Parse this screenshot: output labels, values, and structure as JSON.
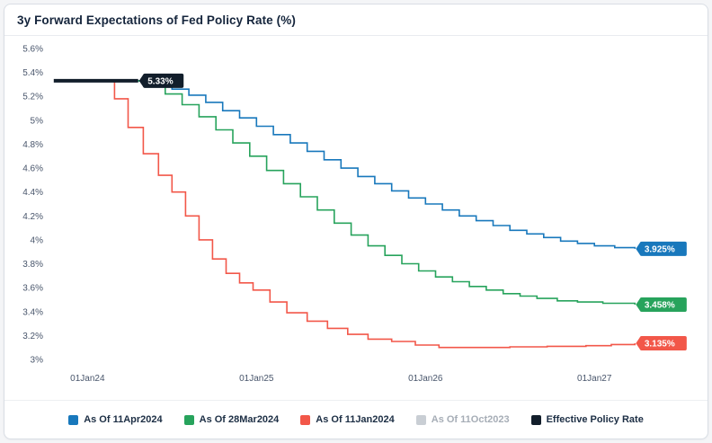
{
  "header": {
    "title": "3y Forward Expectations of Fed Policy Rate (%)"
  },
  "chart_data": {
    "type": "line",
    "step": "after",
    "title": "3y Forward Expectations of Fed Policy Rate (%)",
    "xlabel": "",
    "ylabel": "",
    "grid": false,
    "legend_position": "bottom",
    "x_domain": [
      2023.78,
      2027.6
    ],
    "ylim": [
      3.0,
      5.6
    ],
    "xticks": [
      {
        "x": 2024.0,
        "label": "01Jan24"
      },
      {
        "x": 2025.0,
        "label": "01Jan25"
      },
      {
        "x": 2026.0,
        "label": "01Jan26"
      },
      {
        "x": 2027.0,
        "label": "01Jan27"
      }
    ],
    "yticks": [
      {
        "v": 3.0,
        "label": "3%"
      },
      {
        "v": 3.2,
        "label": "3.2%"
      },
      {
        "v": 3.4,
        "label": "3.4%"
      },
      {
        "v": 3.6,
        "label": "3.6%"
      },
      {
        "v": 3.8,
        "label": "3.8%"
      },
      {
        "v": 4.0,
        "label": "4%"
      },
      {
        "v": 4.2,
        "label": "4.2%"
      },
      {
        "v": 4.4,
        "label": "4.4%"
      },
      {
        "v": 4.6,
        "label": "4.6%"
      },
      {
        "v": 4.8,
        "label": "4.8%"
      },
      {
        "v": 5.0,
        "label": "5%"
      },
      {
        "v": 5.2,
        "label": "5.2%"
      },
      {
        "v": 5.4,
        "label": "5.4%"
      },
      {
        "v": 5.6,
        "label": "5.6%"
      }
    ],
    "series": [
      {
        "name": "As Of 11Apr2024",
        "color": "#1878bc",
        "stroke_width": 1.6,
        "end_label": "3.925%",
        "points": [
          [
            2024.28,
            5.33
          ],
          [
            2024.4,
            5.3
          ],
          [
            2024.5,
            5.26
          ],
          [
            2024.6,
            5.21
          ],
          [
            2024.7,
            5.15
          ],
          [
            2024.8,
            5.08
          ],
          [
            2024.9,
            5.02
          ],
          [
            2025.0,
            4.95
          ],
          [
            2025.1,
            4.88
          ],
          [
            2025.2,
            4.81
          ],
          [
            2025.3,
            4.74
          ],
          [
            2025.4,
            4.67
          ],
          [
            2025.5,
            4.6
          ],
          [
            2025.6,
            4.53
          ],
          [
            2025.7,
            4.47
          ],
          [
            2025.8,
            4.41
          ],
          [
            2025.9,
            4.35
          ],
          [
            2026.0,
            4.3
          ],
          [
            2026.1,
            4.25
          ],
          [
            2026.2,
            4.2
          ],
          [
            2026.3,
            4.16
          ],
          [
            2026.4,
            4.12
          ],
          [
            2026.5,
            4.08
          ],
          [
            2026.6,
            4.05
          ],
          [
            2026.7,
            4.02
          ],
          [
            2026.8,
            3.99
          ],
          [
            2026.9,
            3.97
          ],
          [
            2027.0,
            3.95
          ],
          [
            2027.12,
            3.935
          ],
          [
            2027.24,
            3.925
          ]
        ]
      },
      {
        "name": "As Of 28Mar2024",
        "color": "#27a35c",
        "stroke_width": 1.6,
        "end_label": "3.458%",
        "points": [
          [
            2024.24,
            5.33
          ],
          [
            2024.36,
            5.29
          ],
          [
            2024.46,
            5.22
          ],
          [
            2024.56,
            5.13
          ],
          [
            2024.66,
            5.03
          ],
          [
            2024.76,
            4.92
          ],
          [
            2024.86,
            4.81
          ],
          [
            2024.96,
            4.7
          ],
          [
            2025.06,
            4.58
          ],
          [
            2025.16,
            4.47
          ],
          [
            2025.26,
            4.36
          ],
          [
            2025.36,
            4.25
          ],
          [
            2025.46,
            4.14
          ],
          [
            2025.56,
            4.04
          ],
          [
            2025.66,
            3.95
          ],
          [
            2025.76,
            3.87
          ],
          [
            2025.86,
            3.8
          ],
          [
            2025.96,
            3.74
          ],
          [
            2026.06,
            3.69
          ],
          [
            2026.16,
            3.65
          ],
          [
            2026.26,
            3.61
          ],
          [
            2026.36,
            3.58
          ],
          [
            2026.46,
            3.55
          ],
          [
            2026.56,
            3.53
          ],
          [
            2026.66,
            3.51
          ],
          [
            2026.78,
            3.49
          ],
          [
            2026.9,
            3.48
          ],
          [
            2027.05,
            3.47
          ],
          [
            2027.24,
            3.458
          ]
        ]
      },
      {
        "name": "As Of 11Jan2024",
        "color": "#f25749",
        "stroke_width": 1.6,
        "end_label": "3.135%",
        "points": [
          [
            2024.03,
            5.33
          ],
          [
            2024.16,
            5.18
          ],
          [
            2024.24,
            4.94
          ],
          [
            2024.33,
            4.72
          ],
          [
            2024.42,
            4.54
          ],
          [
            2024.5,
            4.4
          ],
          [
            2024.58,
            4.2
          ],
          [
            2024.66,
            4.0
          ],
          [
            2024.74,
            3.84
          ],
          [
            2024.82,
            3.72
          ],
          [
            2024.9,
            3.64
          ],
          [
            2024.98,
            3.58
          ],
          [
            2025.08,
            3.48
          ],
          [
            2025.18,
            3.39
          ],
          [
            2025.3,
            3.32
          ],
          [
            2025.42,
            3.26
          ],
          [
            2025.54,
            3.21
          ],
          [
            2025.66,
            3.17
          ],
          [
            2025.8,
            3.15
          ],
          [
            2025.94,
            3.12
          ],
          [
            2026.08,
            3.1
          ],
          [
            2026.3,
            3.1
          ],
          [
            2026.5,
            3.105
          ],
          [
            2026.72,
            3.11
          ],
          [
            2026.95,
            3.115
          ],
          [
            2027.1,
            3.125
          ],
          [
            2027.24,
            3.135
          ]
        ]
      },
      {
        "name": "As Of 11Oct2023",
        "color": "#c9ced4",
        "stroke_width": 1.6,
        "muted": true,
        "points": []
      },
      {
        "name": "Effective Policy Rate",
        "color": "#121e2b",
        "stroke_width": 4,
        "end_label": "5.33%",
        "points": [
          [
            2023.8,
            5.33
          ],
          [
            2024.3,
            5.33
          ]
        ]
      }
    ]
  }
}
